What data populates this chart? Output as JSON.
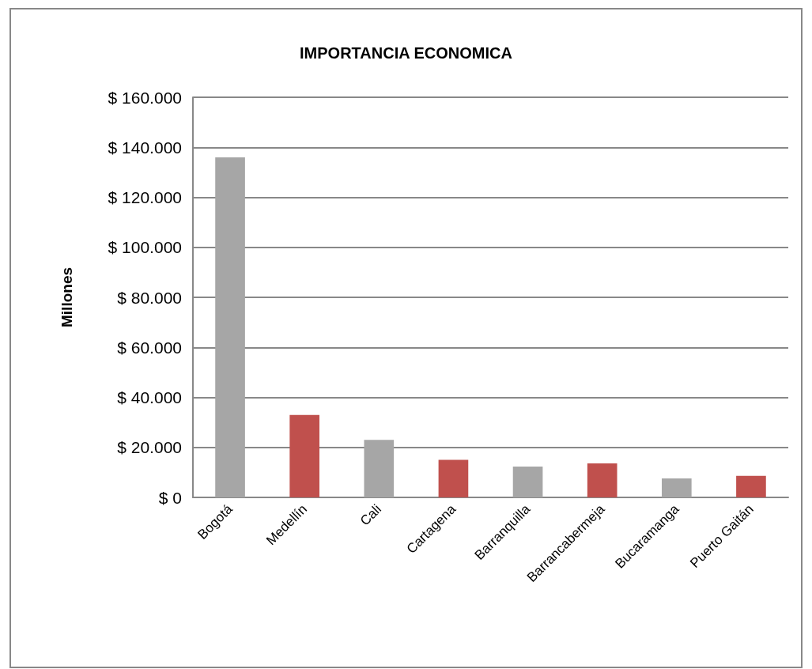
{
  "chart_data": {
    "type": "bar",
    "title": "IMPORTANCIA ECONOMICA",
    "ylabel": "Millones",
    "categories": [
      "Bogotá",
      "Medellín",
      "Cali",
      "Cartagena",
      "Barranquilla",
      "Barrancabermeja",
      "Bucaramanga",
      "Puerto Gaitán"
    ],
    "values": [
      136000,
      33000,
      23000,
      15000,
      12300,
      13600,
      7600,
      8600
    ],
    "colors": [
      "#a6a6a6",
      "#c0504d",
      "#a6a6a6",
      "#c0504d",
      "#a6a6a6",
      "#c0504d",
      "#a6a6a6",
      "#c0504d"
    ],
    "ylim": [
      0,
      160000
    ],
    "yticks": [
      {
        "value": 0,
        "label": "$ 0"
      },
      {
        "value": 20000,
        "label": "$ 20.000"
      },
      {
        "value": 40000,
        "label": "$ 40.000"
      },
      {
        "value": 60000,
        "label": "$ 60.000"
      },
      {
        "value": 80000,
        "label": "$ 80.000"
      },
      {
        "value": 100000,
        "label": "$ 100.000"
      },
      {
        "value": 120000,
        "label": "$ 120.000"
      },
      {
        "value": 140000,
        "label": "$ 140.000"
      },
      {
        "value": 160000,
        "label": "$ 160.000"
      }
    ],
    "grid": "y"
  }
}
